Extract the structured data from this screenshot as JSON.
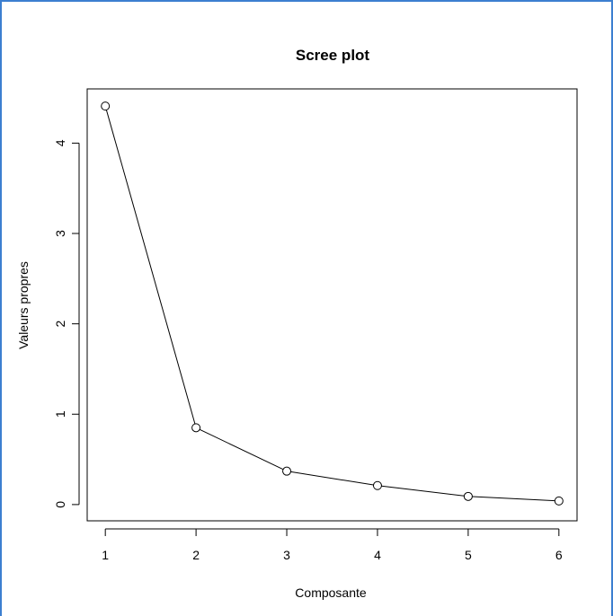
{
  "colors": {
    "frame_border": "#3c7fd0",
    "series_line": "#000000",
    "background": "#ffffff"
  },
  "chart_data": {
    "type": "line",
    "title": "Scree plot",
    "xlabel": "Composante",
    "ylabel": "Valeurs propres",
    "x": [
      1,
      2,
      3,
      4,
      5,
      6
    ],
    "values": [
      4.41,
      0.85,
      0.37,
      0.21,
      0.09,
      0.04
    ],
    "xlim": [
      0.8,
      6.2
    ],
    "ylim": [
      -0.18,
      4.6
    ],
    "xticks": [
      "1",
      "2",
      "3",
      "4",
      "5",
      "6"
    ],
    "yticks": [
      "0",
      "1",
      "2",
      "3",
      "4"
    ],
    "grid": false,
    "marker": "open-circle"
  }
}
